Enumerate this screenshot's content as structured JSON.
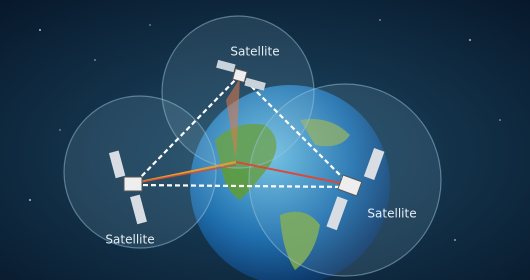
{
  "satellites": [
    {
      "label": "Satellite"
    },
    {
      "label": "Satellite"
    },
    {
      "label": "Satellite"
    }
  ]
}
